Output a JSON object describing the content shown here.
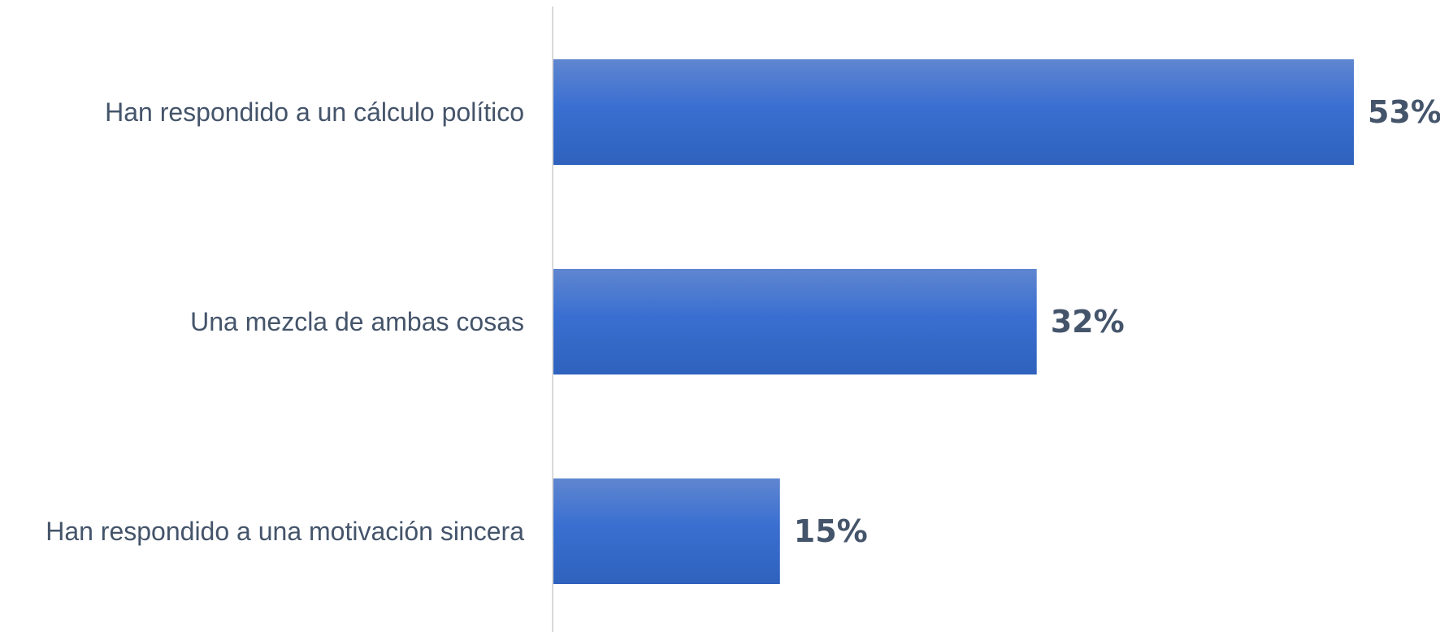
{
  "chart_data": {
    "type": "bar",
    "orientation": "horizontal",
    "categories": [
      "Han respondido a un cálculo político",
      "Una mezcla de ambas cosas",
      "Han respondido a una motivación sincera"
    ],
    "values": [
      53,
      32,
      15
    ],
    "value_labels": [
      "53%",
      "32%",
      "15%"
    ],
    "unit": "%",
    "title": "",
    "xlabel": "",
    "ylabel": "",
    "xlim": [
      0,
      53
    ],
    "grid": false,
    "legend": "none",
    "colors": {
      "bar_top": "#5f86d0",
      "bar_mid": "#3a6fd1",
      "bar_bottom": "#2f62bd",
      "text": "#44546a",
      "axis": "#d9d9d9"
    }
  }
}
